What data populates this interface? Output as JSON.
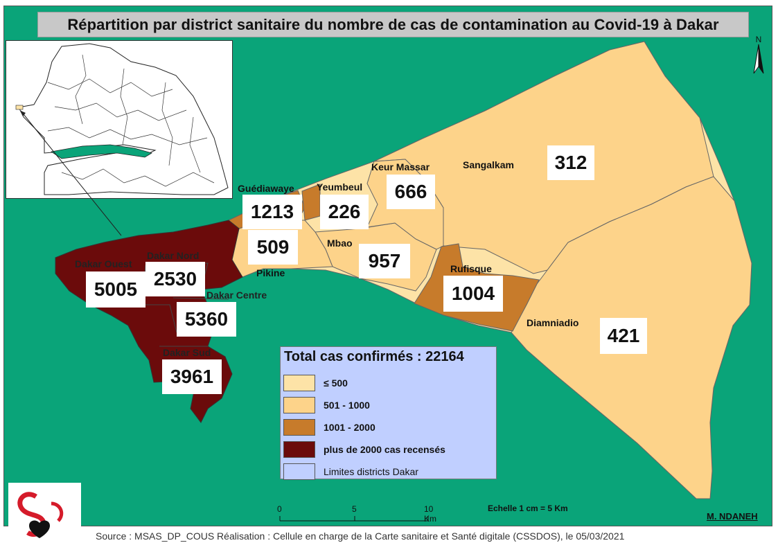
{
  "title": "Répartition par district sanitaire du nombre de cas de contamination au Covid-19 à Dakar",
  "north_label": "N",
  "districts": [
    {
      "name": "Dakar Ouest",
      "cases": "5005",
      "class": "plus de 2000 cas recensés"
    },
    {
      "name": "Dakar Nord",
      "cases": "2530",
      "class": "plus de 2000 cas recensés"
    },
    {
      "name": "Dakar Centre",
      "cases": "5360",
      "class": "plus de 2000 cas recensés"
    },
    {
      "name": "Dakar Sud",
      "cases": "3961",
      "class": "plus de 2000 cas recensés"
    },
    {
      "name": "Guédiawaye",
      "cases": "1213",
      "class": "1001 - 2000"
    },
    {
      "name": "Yeumbeul",
      "cases": "226",
      "class": "≤ 500"
    },
    {
      "name": "Keur Massar",
      "cases": "666",
      "class": "501 - 1000"
    },
    {
      "name": "Sangalkam",
      "cases": "312",
      "class": "≤ 500"
    },
    {
      "name": "Pikine",
      "cases": "509",
      "class": "501 - 1000"
    },
    {
      "name": "Mbao",
      "cases": "957",
      "class": "501 - 1000"
    },
    {
      "name": "Rufisque",
      "cases": "1004",
      "class": "1001 - 2000"
    },
    {
      "name": "Diamniadio",
      "cases": "421",
      "class": "≤ 500"
    }
  ],
  "legend": {
    "title": "Total cas confirmés : 22164",
    "items": [
      {
        "label": "≤ 500",
        "color": "#fde3a7"
      },
      {
        "label": "501 - 1000",
        "color": "#fdd38a"
      },
      {
        "label": "1001 - 2000",
        "color": "#c77b2b"
      },
      {
        "label": "plus de 2000 cas recensés",
        "color": "#6b0b0b"
      },
      {
        "label": "Limites districts Dakar",
        "color": "#c0cfff"
      }
    ]
  },
  "scale": {
    "ticks": [
      "0",
      "5",
      "10 Km"
    ],
    "note": "Echelle 1 cm = 5 Km"
  },
  "author": "M. NDANEH",
  "source": "Source : MSAS_DP_COUS Réalisation : Cellule en charge de la Carte sanitaire et Santé digitale (CSSDOS), le 05/03/2021",
  "colors": {
    "sea": "#0aa479",
    "title_bg": "#c8c8c8",
    "legend_bg": "#c0cfff"
  }
}
